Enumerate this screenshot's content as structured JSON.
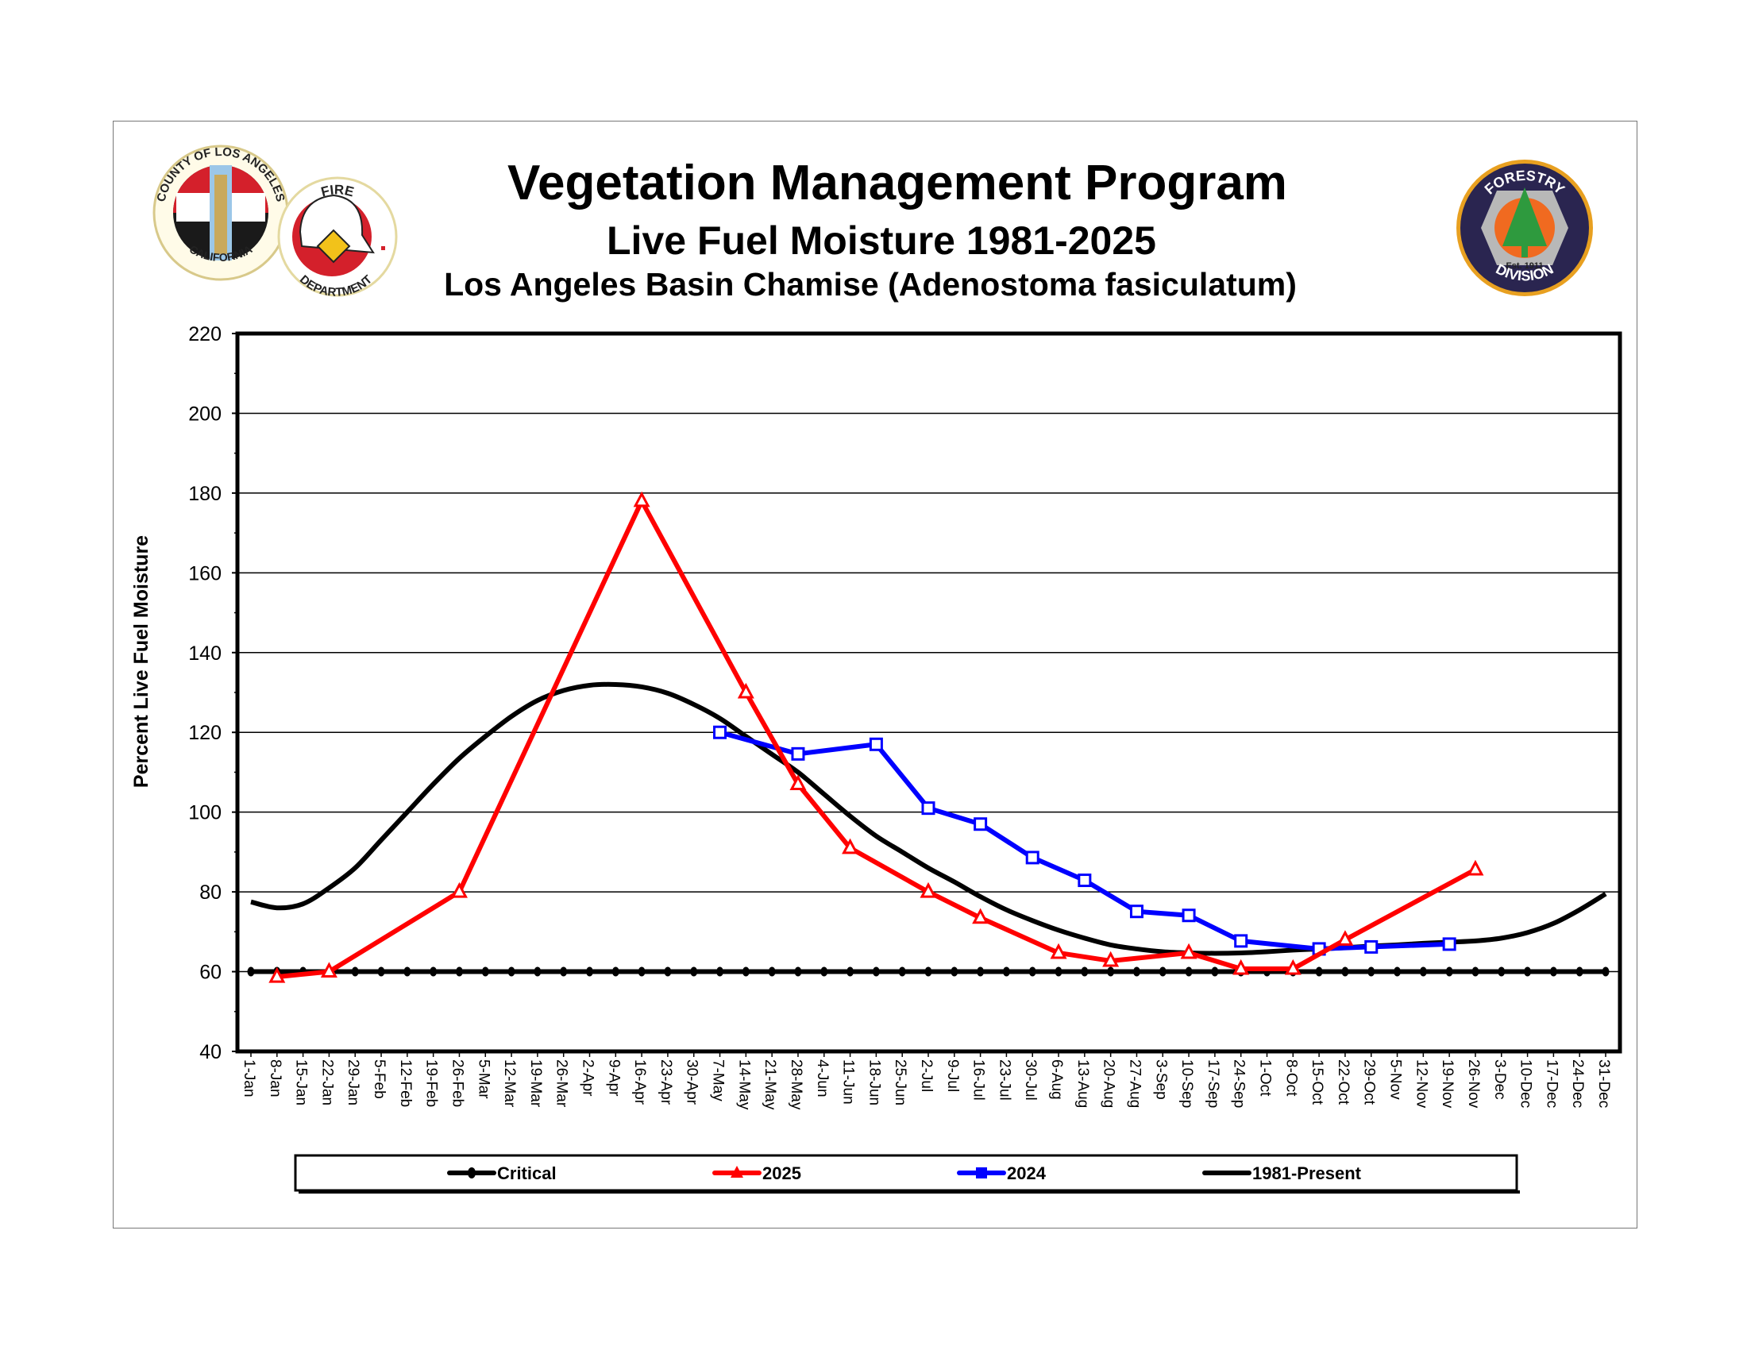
{
  "header": {
    "title": "Vegetation Management Program",
    "subtitle": "Live Fuel Moisture 1981-2025",
    "subtitle2": "Los Angeles Basin Chamise (Adenostoma fasiculatum)"
  },
  "logos": {
    "county_seal": {
      "text_top": "COUNTY OF LOS ANGELES",
      "text_bottom": "CALIFORNIA"
    },
    "fire_department": {
      "text_top": "FIRE",
      "text_bottom": "DEPARTMENT"
    },
    "forestry_division": {
      "text_top": "FORESTRY",
      "text_bottom": "DIVISION",
      "est": "Est. 1911"
    }
  },
  "chart_data": {
    "type": "line",
    "title": "Vegetation Management Program",
    "ylabel": "Percent Live Fuel Moisture",
    "xlabel": "",
    "ylim": [
      40,
      220
    ],
    "yticks": [
      40,
      60,
      80,
      100,
      120,
      140,
      160,
      180,
      200,
      220
    ],
    "grid": true,
    "legend_position": "bottom",
    "categories": [
      "1-Jan",
      "8-Jan",
      "15-Jan",
      "22-Jan",
      "29-Jan",
      "5-Feb",
      "12-Feb",
      "19-Feb",
      "26-Feb",
      "5-Mar",
      "12-Mar",
      "19-Mar",
      "26-Mar",
      "2-Apr",
      "9-Apr",
      "16-Apr",
      "23-Apr",
      "30-Apr",
      "7-May",
      "14-May",
      "21-May",
      "28-May",
      "4-Jun",
      "11-Jun",
      "18-Jun",
      "25-Jun",
      "2-Jul",
      "9-Jul",
      "16-Jul",
      "23-Jul",
      "30-Jul",
      "6-Aug",
      "13-Aug",
      "20-Aug",
      "27-Aug",
      "3-Sep",
      "10-Sep",
      "17-Sep",
      "24-Sep",
      "1-Oct",
      "8-Oct",
      "15-Oct",
      "22-Oct",
      "29-Oct",
      "5-Nov",
      "12-Nov",
      "19-Nov",
      "26-Nov",
      "3-Dec",
      "10-Dec",
      "17-Dec",
      "24-Dec",
      "31-Dec"
    ],
    "series": [
      {
        "name": "Critical",
        "color": "#000000",
        "marker": "circle",
        "values": [
          60,
          60,
          60,
          60,
          60,
          60,
          60,
          60,
          60,
          60,
          60,
          60,
          60,
          60,
          60,
          60,
          60,
          60,
          60,
          60,
          60,
          60,
          60,
          60,
          60,
          60,
          60,
          60,
          60,
          60,
          60,
          60,
          60,
          60,
          60,
          60,
          60,
          60,
          60,
          60,
          60,
          60,
          60,
          60,
          60,
          60,
          60,
          60,
          60,
          60,
          60,
          60,
          60
        ]
      },
      {
        "name": "2025",
        "color": "#ff0000",
        "marker": "triangle",
        "values": [
          null,
          58.7,
          null,
          60,
          null,
          null,
          null,
          null,
          80,
          null,
          null,
          null,
          null,
          null,
          null,
          178,
          null,
          null,
          null,
          130,
          null,
          107,
          null,
          91,
          null,
          null,
          80,
          null,
          73.5,
          null,
          null,
          64.7,
          null,
          62.7,
          null,
          null,
          64.7,
          null,
          60.7,
          null,
          60.7,
          null,
          68,
          null,
          null,
          null,
          null,
          85.6,
          null,
          null,
          null,
          null,
          null
        ]
      },
      {
        "name": "2024",
        "color": "#0000ff",
        "marker": "square",
        "values": [
          null,
          null,
          null,
          null,
          null,
          null,
          null,
          null,
          null,
          null,
          null,
          null,
          null,
          null,
          null,
          null,
          null,
          null,
          120,
          null,
          null,
          114.6,
          null,
          null,
          117,
          null,
          101,
          null,
          97,
          null,
          88.6,
          null,
          82.9,
          null,
          75.1,
          null,
          74.1,
          null,
          67.7,
          null,
          null,
          65.7,
          null,
          66.2,
          null,
          null,
          66.9,
          null,
          null,
          null,
          null,
          null,
          null
        ]
      },
      {
        "name": "1981-Present",
        "color": "#000000",
        "marker": "none",
        "smooth": true,
        "values": [
          77.5,
          76,
          77,
          81,
          86,
          93,
          100,
          107,
          113.5,
          119,
          124,
          128,
          130.5,
          131.8,
          132,
          131.4,
          129.8,
          127,
          123.5,
          119,
          114.5,
          110,
          104.5,
          99,
          94,
          90,
          86,
          82.5,
          78.8,
          75.5,
          72.8,
          70.4,
          68.4,
          66.7,
          65.7,
          65,
          64.7,
          64.6,
          64.7,
          65,
          65.4,
          65.7,
          66,
          66.4,
          66.7,
          67.1,
          67.4,
          67.7,
          68.4,
          69.8,
          72.1,
          75.5,
          79.5
        ]
      }
    ]
  }
}
